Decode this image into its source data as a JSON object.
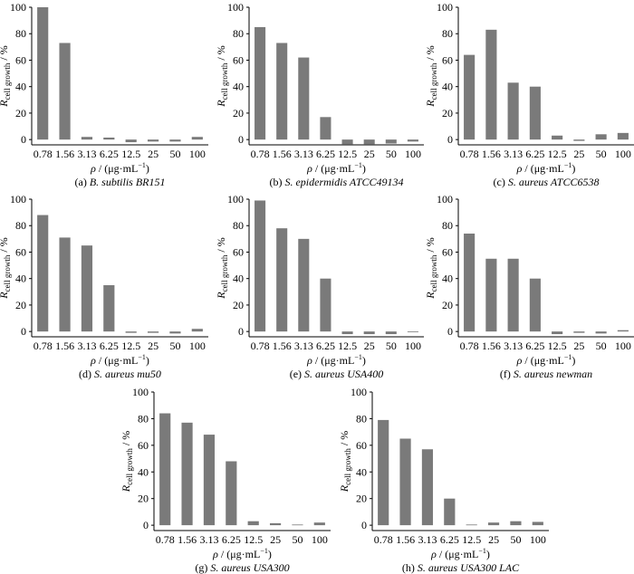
{
  "figure": {
    "ylabel_main": "R",
    "ylabel_sub": "cell growth",
    "ylabel_unit": " / %",
    "xlabel_rho": "ρ",
    "xlabel_unit": " / (μg·mL",
    "xlabel_exp": "−1",
    "xlabel_close": ")"
  },
  "chart_data": [
    {
      "type": "bar",
      "id": "a",
      "caption_prefix": "(a) ",
      "caption_name": "B. subtilis BR151",
      "categories": [
        "0.78",
        "1.56",
        "3.13",
        "6.25",
        "12.5",
        "25",
        "50",
        "100"
      ],
      "values": [
        100,
        73,
        2,
        1.5,
        -2,
        -1.5,
        -1.5,
        2
      ],
      "ylim": [
        -4,
        100
      ],
      "yticks": [
        0,
        20,
        40,
        60,
        80,
        100
      ]
    },
    {
      "type": "bar",
      "id": "b",
      "caption_prefix": "(b) ",
      "caption_name": "S. epidermidis ATCC49134",
      "categories": [
        "0.78",
        "1.56",
        "3.13",
        "6.25",
        "12.5",
        "25",
        "50",
        "100"
      ],
      "values": [
        85,
        73,
        62,
        17,
        -3.5,
        -3.5,
        -3,
        -1.5
      ],
      "ylim": [
        -4,
        100
      ],
      "yticks": [
        0,
        20,
        40,
        60,
        80,
        100
      ]
    },
    {
      "type": "bar",
      "id": "c",
      "caption_prefix": "(c) ",
      "caption_name": "S. aureus ATCC6538",
      "categories": [
        "0.78",
        "1.56",
        "3.13",
        "6.25",
        "12.5",
        "25",
        "50",
        "100"
      ],
      "values": [
        64,
        83,
        43,
        40,
        3,
        -1,
        4,
        5
      ],
      "ylim": [
        -4,
        100
      ],
      "yticks": [
        0,
        20,
        40,
        60,
        80,
        100
      ]
    },
    {
      "type": "bar",
      "id": "d",
      "caption_prefix": "(d) ",
      "caption_name": "S. aureus mu50",
      "categories": [
        "0.78",
        "1.56",
        "3.13",
        "6.25",
        "12.5",
        "25",
        "50",
        "100"
      ],
      "values": [
        88,
        71,
        65,
        35,
        -1,
        -1,
        -1.5,
        2
      ],
      "ylim": [
        -4,
        100
      ],
      "yticks": [
        0,
        20,
        40,
        60,
        80,
        100
      ]
    },
    {
      "type": "bar",
      "id": "e",
      "caption_prefix": "(e) ",
      "caption_name": "S. aureus USA400",
      "categories": [
        "0.78",
        "1.56",
        "3.13",
        "6.25",
        "12.5",
        "25",
        "50",
        "100"
      ],
      "values": [
        99,
        78,
        70,
        40,
        -2,
        -2,
        -2,
        0
      ],
      "ylim": [
        -4,
        100
      ],
      "yticks": [
        0,
        20,
        40,
        60,
        80,
        100
      ]
    },
    {
      "type": "bar",
      "id": "f",
      "caption_prefix": "(f) ",
      "caption_name": "S. aureus newman",
      "categories": [
        "0.78",
        "1.56",
        "3.13",
        "6.25",
        "12.5",
        "25",
        "50",
        "100"
      ],
      "values": [
        74,
        55,
        55,
        40,
        -2,
        -1,
        -1.5,
        1
      ],
      "ylim": [
        -4,
        100
      ],
      "yticks": [
        0,
        20,
        40,
        60,
        80,
        100
      ]
    },
    {
      "type": "bar",
      "id": "g",
      "caption_prefix": "(g) ",
      "caption_name": "S. aureus USA300",
      "categories": [
        "0.78",
        "1.56",
        "3.13",
        "6.25",
        "12.5",
        "25",
        "50",
        "100"
      ],
      "values": [
        84,
        77,
        68,
        48,
        3,
        1.5,
        0.5,
        2
      ],
      "ylim": [
        -4,
        100
      ],
      "yticks": [
        0,
        20,
        40,
        60,
        80,
        100
      ]
    },
    {
      "type": "bar",
      "id": "h",
      "caption_prefix": "(h) ",
      "caption_name": "S. aureus USA300 LAC",
      "categories": [
        "0.78",
        "1.56",
        "3.13",
        "6.25",
        "12.5",
        "25",
        "50",
        "100"
      ],
      "values": [
        79,
        65,
        57,
        20,
        0.5,
        2,
        3,
        2.5
      ],
      "ylim": [
        -4,
        100
      ],
      "yticks": [
        0,
        20,
        40,
        60,
        80,
        100
      ]
    }
  ]
}
